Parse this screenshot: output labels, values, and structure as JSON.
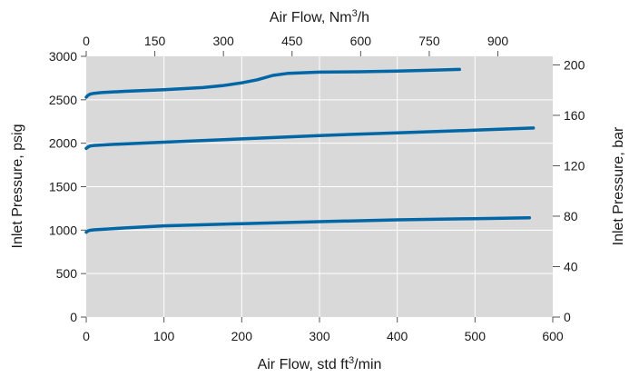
{
  "chart_data": {
    "type": "line",
    "x": {
      "label_parts": [
        "Air Flow, std ft",
        "3",
        "/min"
      ],
      "min": 0,
      "max": 600,
      "ticks": [
        0,
        100,
        200,
        300,
        400,
        500,
        600
      ]
    },
    "x_top": {
      "label_parts": [
        "Air Flow, Nm",
        "3",
        "/h"
      ],
      "min": 0,
      "max": 1020,
      "ticks": [
        0,
        150,
        300,
        450,
        600,
        750,
        900
      ]
    },
    "y": {
      "label": "Inlet Pressure, psig",
      "min": 0,
      "max": 3000,
      "ticks": [
        0,
        500,
        1000,
        1500,
        2000,
        2500,
        3000
      ]
    },
    "y_right": {
      "label": "Inlet Pressure, bar",
      "min": 0,
      "max": 206.8,
      "ticks": [
        0,
        40,
        80,
        120,
        160,
        200
      ]
    },
    "grid": true,
    "line_color": "#0066a6",
    "plot_background": "#d9d9d9",
    "series": [
      {
        "points": [
          [
            0,
            2530
          ],
          [
            2,
            2550
          ],
          [
            5,
            2565
          ],
          [
            10,
            2575
          ],
          [
            20,
            2583
          ],
          [
            50,
            2598
          ],
          [
            100,
            2615
          ],
          [
            150,
            2640
          ],
          [
            175,
            2662
          ],
          [
            200,
            2695
          ],
          [
            220,
            2730
          ],
          [
            240,
            2780
          ],
          [
            260,
            2805
          ],
          [
            300,
            2818
          ],
          [
            350,
            2822
          ],
          [
            400,
            2830
          ],
          [
            450,
            2842
          ],
          [
            480,
            2850
          ]
        ]
      },
      {
        "points": [
          [
            0,
            1940
          ],
          [
            2,
            1955
          ],
          [
            5,
            1968
          ],
          [
            10,
            1975
          ],
          [
            30,
            1985
          ],
          [
            100,
            2012
          ],
          [
            200,
            2050
          ],
          [
            300,
            2088
          ],
          [
            400,
            2120
          ],
          [
            500,
            2150
          ],
          [
            575,
            2175
          ]
        ]
      },
      {
        "points": [
          [
            0,
            975
          ],
          [
            2,
            990
          ],
          [
            5,
            998
          ],
          [
            10,
            1003
          ],
          [
            50,
            1025
          ],
          [
            100,
            1050
          ],
          [
            200,
            1075
          ],
          [
            300,
            1098
          ],
          [
            400,
            1118
          ],
          [
            500,
            1132
          ],
          [
            570,
            1142
          ]
        ]
      }
    ]
  }
}
